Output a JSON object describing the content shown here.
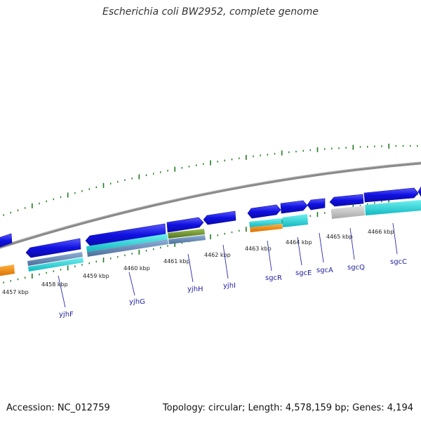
{
  "title": "Escherichia coli BW2952, complete genome",
  "footer": {
    "accession": "Accession: NC_012759",
    "summary": "Topology: circular; Length: 4,578,159 bp; Genes: 4,194"
  },
  "colors": {
    "gene_blue": "#1010e0",
    "cyan": "#20d0d0",
    "steel": "#5f87b5",
    "olive": "#6a9030",
    "orange": "#f08c10",
    "gray": "#c4c4c4",
    "backbone": "#8a8a8a",
    "tick": "#1e7a1e",
    "label": "#1e1ea0"
  },
  "kbp_labels": [
    "4457 kbp",
    "4458 kbp",
    "4459 kbp",
    "4460 kbp",
    "4461 kbp",
    "4462 kbp",
    "4463 kbp",
    "4464 kbp",
    "4465 kbp",
    "4466 kbp"
  ],
  "gene_labels": [
    "yjhF",
    "yjhG",
    "yjhH",
    "yjhI",
    "sgcR",
    "sgcE",
    "sgcA",
    "sgcQ",
    "sgcC"
  ]
}
